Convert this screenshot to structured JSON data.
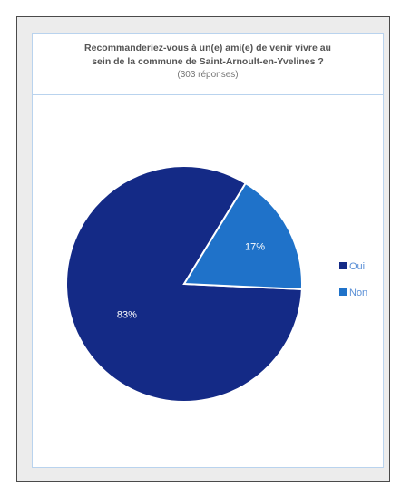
{
  "chart_data": {
    "type": "pie",
    "title_line1": "Recommanderiez-vous à un(e) ami(e) de venir vivre au",
    "title_line2": "sein de la commune de Saint-Arnoult-en-Yvelines ?",
    "subtitle": "(303 réponses)",
    "categories": [
      "Oui",
      "Non"
    ],
    "values": [
      83,
      17
    ],
    "value_labels": [
      "83%",
      "17%"
    ],
    "colors": [
      "#142a86",
      "#1f72c9"
    ],
    "legend_position": "right"
  }
}
